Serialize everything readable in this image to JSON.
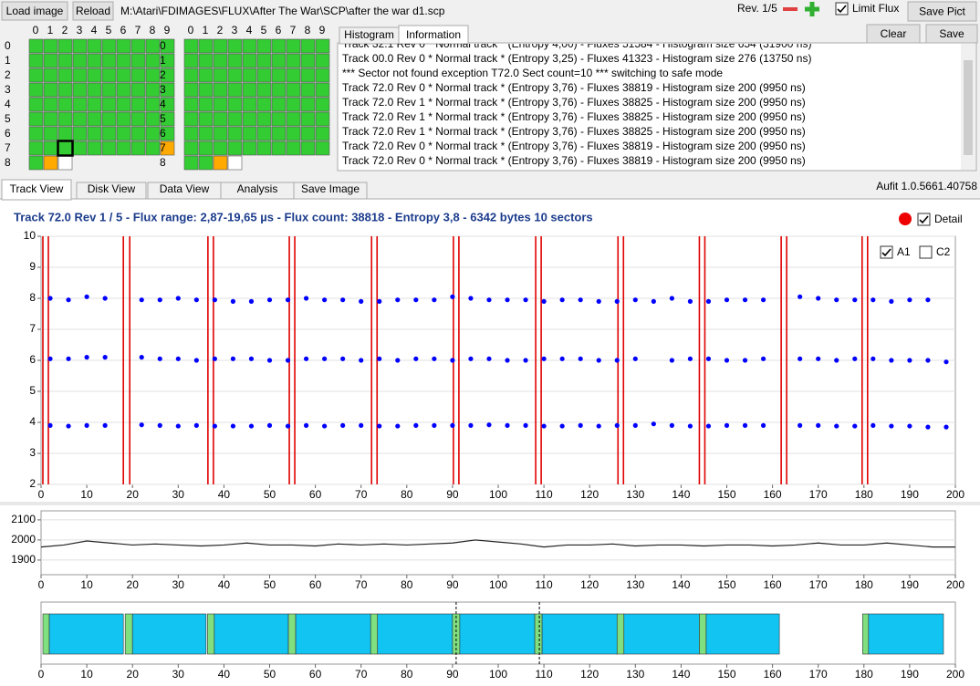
{
  "toolbar": {
    "load": "Load image",
    "reload": "Reload",
    "path": "M:\\Atari\\FDIMAGES\\FLUX\\After The War\\SCP\\after the war d1.scp",
    "rev": "Rev. 1/5",
    "limit_flux": "Limit Flux",
    "save_pict": "Save Pict",
    "clear": "Clear",
    "save": "Save"
  },
  "grid_labels": {
    "columns": [
      0,
      1,
      2,
      3,
      4,
      5,
      6,
      7,
      8,
      9
    ],
    "rows": [
      0,
      1,
      2,
      3,
      4,
      5,
      6,
      7,
      8
    ]
  },
  "grids": [
    {
      "selected": [
        7,
        2
      ],
      "cells": [
        [
          "#3c3",
          "#3c3",
          "#3c3",
          "#3c3",
          "#3c3",
          "#3c3",
          "#3c3",
          "#3c3",
          "#3c3",
          "#3c3"
        ],
        [
          "#3c3",
          "#3c3",
          "#3c3",
          "#3c3",
          "#3c3",
          "#3c3",
          "#3c3",
          "#3c3",
          "#3c3",
          "#3c3"
        ],
        [
          "#3c3",
          "#3c3",
          "#3c3",
          "#3c3",
          "#3c3",
          "#3c3",
          "#3c3",
          "#3c3",
          "#3c3",
          "#3c3"
        ],
        [
          "#3c3",
          "#3c3",
          "#3c3",
          "#3c3",
          "#3c3",
          "#3c3",
          "#3c3",
          "#3c3",
          "#3c3",
          "#3c3"
        ],
        [
          "#3c3",
          "#3c3",
          "#3c3",
          "#3c3",
          "#3c3",
          "#3c3",
          "#3c3",
          "#3c3",
          "#3c3",
          "#3c3"
        ],
        [
          "#3c3",
          "#3c3",
          "#3c3",
          "#3c3",
          "#3c3",
          "#3c3",
          "#3c3",
          "#3c3",
          "#3c3",
          "#3c3"
        ],
        [
          "#3c3",
          "#3c3",
          "#3c3",
          "#3c3",
          "#3c3",
          "#3c3",
          "#3c3",
          "#3c3",
          "#3c3",
          "#3c3"
        ],
        [
          "#3c3",
          "#3c3",
          "#3c3",
          "#3c3",
          "#3c3",
          "#3c3",
          "#3c3",
          "#3c3",
          "#3c3",
          "#fa0"
        ],
        [
          "#3c3",
          "#fa0",
          "#fff"
        ]
      ]
    },
    {
      "cells": [
        [
          "#3c3",
          "#3c3",
          "#3c3",
          "#3c3",
          "#3c3",
          "#3c3",
          "#3c3",
          "#3c3",
          "#3c3",
          "#3c3"
        ],
        [
          "#3c3",
          "#3c3",
          "#3c3",
          "#3c3",
          "#3c3",
          "#3c3",
          "#3c3",
          "#3c3",
          "#3c3",
          "#3c3"
        ],
        [
          "#3c3",
          "#3c3",
          "#3c3",
          "#3c3",
          "#3c3",
          "#3c3",
          "#3c3",
          "#3c3",
          "#3c3",
          "#3c3"
        ],
        [
          "#3c3",
          "#3c3",
          "#3c3",
          "#3c3",
          "#3c3",
          "#3c3",
          "#3c3",
          "#3c3",
          "#3c3",
          "#3c3"
        ],
        [
          "#3c3",
          "#3c3",
          "#3c3",
          "#3c3",
          "#3c3",
          "#3c3",
          "#3c3",
          "#3c3",
          "#3c3",
          "#3c3"
        ],
        [
          "#3c3",
          "#3c3",
          "#3c3",
          "#3c3",
          "#3c3",
          "#3c3",
          "#3c3",
          "#3c3",
          "#3c3",
          "#3c3"
        ],
        [
          "#3c3",
          "#3c3",
          "#3c3",
          "#3c3",
          "#3c3",
          "#3c3",
          "#3c3",
          "#3c3",
          "#3c3",
          "#3c3"
        ],
        [
          "#3c3",
          "#3c3",
          "#3c3",
          "#3c3",
          "#3c3",
          "#3c3",
          "#3c3",
          "#3c3",
          "#3c3",
          "#3c3"
        ],
        [
          "#3c3",
          "#3c3",
          "#fa0",
          "#fff"
        ]
      ]
    }
  ],
  "log": {
    "tabs": [
      "Histogram",
      "Information"
    ],
    "lines": [
      "Track 32.1 Rev 0 * Normal track * (Entropy 4,00) - Fluxes 51584 - Histogram size 654 (31900 ns)",
      "Track 00.0 Rev 0 * Normal track * (Entropy 3,25) - Fluxes 41323 - Histogram size 276 (13750 ns)",
      "*** Sector not found exception T72.0 Sect count=10 *** switching to safe mode",
      "Track 72.0 Rev 0 * Normal track * (Entropy 3,76) - Fluxes 38819 - Histogram size 200 (9950 ns)",
      "Track 72.0 Rev 1 * Normal track * (Entropy 3,76) - Fluxes 38825 - Histogram size 200 (9950 ns)",
      "Track 72.0 Rev 1 * Normal track * (Entropy 3,76) - Fluxes 38825 - Histogram size 200 (9950 ns)",
      "Track 72.0 Rev 1 * Normal track * (Entropy 3,76) - Fluxes 38825 - Histogram size 200 (9950 ns)",
      "Track 72.0 Rev 0 * Normal track * (Entropy 3,76) - Fluxes 38819 - Histogram size 200 (9950 ns)",
      "Track 72.0 Rev 0 * Normal track * (Entropy 3,76) - Fluxes 38819 - Histogram size 200 (9950 ns)"
    ]
  },
  "tabs": [
    "Track View",
    "Disk View",
    "Data View",
    "Analysis",
    "Save Image"
  ],
  "version": "Aufit 1.0.5661.40758",
  "detail": "Detail",
  "chart_data": [
    {
      "type": "scatter",
      "title": "Track 72.0 Rev 1 / 5 - Flux range: 2,87-19,65 µs - Flux count: 38818 - Entropy 3,8 - 6342 bytes 10 sectors",
      "xlim": [
        0,
        200
      ],
      "ylim": [
        2,
        10
      ],
      "xticks": [
        0,
        10,
        20,
        30,
        40,
        50,
        60,
        70,
        80,
        90,
        100,
        110,
        120,
        130,
        140,
        150,
        160,
        170,
        180,
        190,
        200
      ],
      "yticks": [
        2,
        3,
        4,
        5,
        6,
        7,
        8,
        9,
        10
      ],
      "grid": true,
      "x": [
        2,
        6,
        10,
        14,
        18,
        22,
        26,
        30,
        34,
        38,
        42,
        46,
        50,
        54,
        58,
        62,
        66,
        70,
        74,
        78,
        82,
        86,
        90,
        94,
        98,
        102,
        106,
        110,
        114,
        118,
        122,
        126,
        130,
        134,
        138,
        142,
        146,
        150,
        154,
        158,
        162,
        166,
        170,
        174,
        178,
        182,
        186,
        190,
        194,
        198
      ],
      "series": [
        {
          "color": "#0000ff",
          "values": [
            8.0,
            7.95,
            8.05,
            8.0,
            null,
            7.95,
            7.95,
            8.0,
            7.95,
            7.95,
            7.9,
            7.9,
            7.95,
            7.95,
            8.0,
            7.95,
            7.95,
            7.9,
            7.9,
            7.95,
            7.95,
            7.95,
            8.05,
            8.0,
            7.95,
            7.95,
            7.95,
            7.9,
            7.95,
            7.95,
            7.9,
            7.9,
            7.95,
            7.9,
            8.0,
            7.9,
            7.9,
            7.95,
            7.95,
            7.95,
            null,
            8.05,
            8.0,
            7.95,
            7.95,
            7.95,
            7.9,
            7.95,
            7.95,
            null
          ]
        },
        {
          "color": "#0000ff",
          "values": [
            6.05,
            6.05,
            6.1,
            6.1,
            null,
            6.1,
            6.05,
            6.05,
            6.0,
            6.05,
            6.05,
            6.05,
            6.0,
            6.0,
            6.05,
            6.05,
            6.05,
            6.0,
            6.05,
            6.0,
            6.05,
            6.05,
            6.0,
            6.05,
            6.05,
            6.0,
            6.0,
            6.05,
            6.05,
            6.05,
            6.0,
            6.0,
            6.05,
            null,
            6.0,
            6.05,
            6.05,
            6.0,
            6.0,
            6.05,
            null,
            6.05,
            6.05,
            6.0,
            6.05,
            6.05,
            6.0,
            6.0,
            6.0,
            5.95
          ]
        },
        {
          "color": "#0000ff",
          "values": [
            3.9,
            3.88,
            3.9,
            3.9,
            null,
            3.92,
            3.9,
            3.88,
            3.9,
            3.88,
            3.88,
            3.88,
            3.9,
            3.88,
            3.9,
            3.88,
            3.9,
            3.9,
            3.88,
            3.88,
            3.9,
            3.9,
            3.9,
            3.9,
            3.92,
            3.9,
            3.9,
            3.88,
            3.88,
            3.9,
            3.88,
            3.9,
            3.9,
            3.95,
            3.9,
            3.88,
            3.88,
            3.9,
            3.9,
            3.9,
            null,
            3.9,
            3.9,
            3.88,
            3.88,
            3.9,
            3.88,
            3.88,
            3.85,
            3.85
          ]
        }
      ],
      "markers": [
        0.4,
        1.6,
        18.0,
        19.4,
        36.5,
        37.7,
        54.3,
        55.5,
        72.3,
        73.5,
        90.2,
        91.4,
        108.2,
        109.4,
        126.2,
        127.4,
        144.0,
        145.2,
        161.9,
        163.1,
        179.6,
        180.8
      ],
      "marker_color": "#e00000",
      "checkboxes": [
        {
          "label": "A1",
          "checked": true
        },
        {
          "label": "C2",
          "checked": false
        }
      ]
    },
    {
      "type": "line",
      "xlim": [
        0,
        200
      ],
      "ylim": [
        1827,
        2145
      ],
      "xticks": [
        0,
        10,
        20,
        30,
        40,
        50,
        60,
        70,
        80,
        90,
        100,
        110,
        120,
        130,
        140,
        150,
        160,
        170,
        180,
        190,
        200
      ],
      "yticks": [
        1900,
        2000,
        2100
      ],
      "grid": true,
      "color": "#222222",
      "x": [
        0,
        5,
        10,
        15,
        20,
        25,
        30,
        35,
        40,
        45,
        50,
        55,
        60,
        65,
        70,
        75,
        80,
        85,
        90,
        95,
        100,
        105,
        110,
        115,
        120,
        125,
        130,
        135,
        140,
        145,
        150,
        155,
        160,
        165,
        170,
        175,
        180,
        185,
        190,
        195,
        200
      ],
      "values": [
        1965,
        1975,
        1995,
        1985,
        1975,
        1980,
        1975,
        1970,
        1975,
        1985,
        1975,
        1975,
        1970,
        1980,
        1975,
        1980,
        1975,
        1980,
        1985,
        2000,
        1990,
        1980,
        1965,
        1975,
        1975,
        1980,
        1970,
        1975,
        1975,
        1970,
        1975,
        1975,
        1970,
        1975,
        1985,
        1975,
        1975,
        1985,
        1975,
        1965,
        1965
      ]
    },
    {
      "type": "gantt",
      "xlim": [
        0,
        200
      ],
      "xticks": [
        0,
        10,
        20,
        30,
        40,
        50,
        60,
        70,
        80,
        90,
        100,
        110,
        120,
        130,
        140,
        150,
        160,
        170,
        180,
        190,
        200
      ],
      "header_color": "#80e080",
      "body_color": "#12c4f2",
      "sectors": [
        [
          0.4,
          1.8,
          18.0
        ],
        [
          18.4,
          20.0,
          36.1
        ],
        [
          36.4,
          37.9,
          54.1
        ],
        [
          54.1,
          55.7,
          72.1
        ],
        [
          72.1,
          73.6,
          90.0
        ],
        [
          90.0,
          91.6,
          108.0
        ],
        [
          108.0,
          109.6,
          126.0
        ],
        [
          126.0,
          127.5,
          144.0
        ],
        [
          144.0,
          145.5,
          161.5
        ],
        [
          179.7,
          181.0,
          197.4
        ]
      ],
      "markers": [
        90.8,
        109.0
      ]
    }
  ]
}
